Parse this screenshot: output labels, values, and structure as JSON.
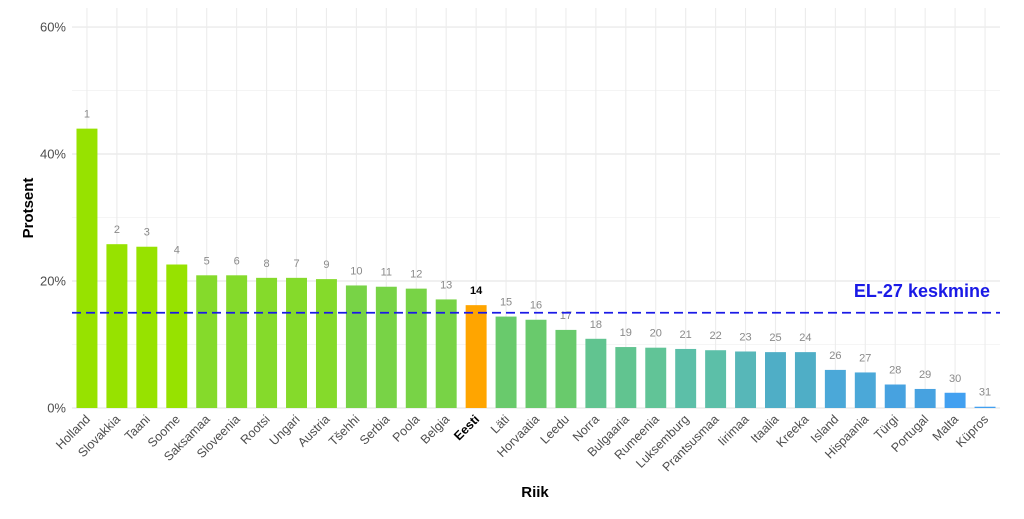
{
  "chart_data": {
    "type": "bar",
    "xlabel": "Riik",
    "ylabel": "Protsent",
    "ylim": [
      0,
      63
    ],
    "yticks": [
      0,
      20,
      40,
      60
    ],
    "ytick_labels": [
      "0%",
      "20%",
      "40%",
      "60%"
    ],
    "grid": true,
    "highlight": "Eesti",
    "categories": [
      "Holland",
      "Slovakkia",
      "Taani",
      "Soome",
      "Saksamaa",
      "Sloveenia",
      "Rootsi",
      "Ungari",
      "Austria",
      "Tšehhi",
      "Serbia",
      "Poola",
      "Belgia",
      "Eesti",
      "Läti",
      "Horvaatia",
      "Leedu",
      "Norra",
      "Bulgaaria",
      "Rumeenia",
      "Luksemburg",
      "Prantsusmaa",
      "Iirimaa",
      "Itaalia",
      "Kreeka",
      "Island",
      "Hispaania",
      "Türgi",
      "Portugal",
      "Malta",
      "Küpros"
    ],
    "values": [
      44.0,
      25.8,
      25.4,
      22.6,
      20.9,
      20.9,
      20.5,
      20.5,
      20.3,
      19.3,
      19.1,
      18.8,
      17.1,
      16.2,
      14.4,
      13.9,
      12.3,
      10.9,
      9.6,
      9.5,
      9.3,
      9.1,
      8.9,
      8.8,
      8.8,
      6.0,
      5.6,
      3.7,
      3.0,
      2.4,
      0.2
    ],
    "ranks": [
      "1",
      "2",
      "3",
      "4",
      "5",
      "6",
      "8",
      "7",
      "9",
      "10",
      "11",
      "12",
      "13",
      "14",
      "15",
      "16",
      "17",
      "18",
      "19",
      "20",
      "21",
      "22",
      "23",
      "25",
      "24",
      "26",
      "27",
      "28",
      "29",
      "30",
      "31"
    ],
    "colors": [
      "#97E200",
      "#97E200",
      "#97E200",
      "#97E200",
      "#85DA2B",
      "#85DA2B",
      "#85DA2B",
      "#85DA2B",
      "#85DA2B",
      "#78D346",
      "#78D346",
      "#78D346",
      "#78D346",
      "#FFA500",
      "#69CA6C",
      "#69CA6C",
      "#69CA6C",
      "#61C490",
      "#61C490",
      "#61C497",
      "#5CBFA8",
      "#5CBFA8",
      "#57B7B8",
      "#4FAEC6",
      "#4FAEC6",
      "#4BA8D8",
      "#4BA8D8",
      "#47A2E0",
      "#47A2E0",
      "#42A0F0",
      "#42A0F0"
    ],
    "reference_line": {
      "value": 15,
      "label": "EL-27 keskmine",
      "color": "#1A1AE6"
    }
  }
}
